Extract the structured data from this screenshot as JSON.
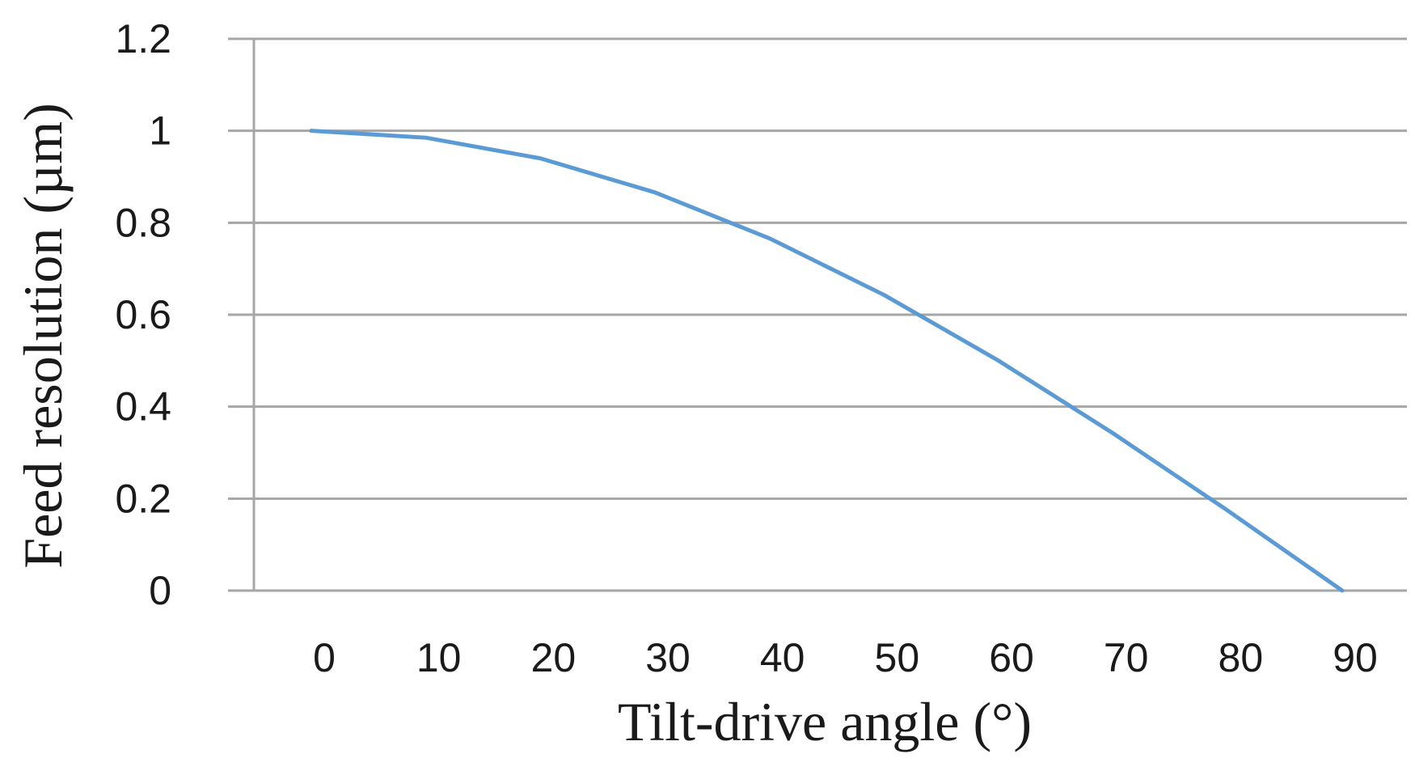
{
  "chart_data": {
    "type": "line",
    "xlabel": "Tilt-drive angle (°)",
    "ylabel": "Feed resolution (µm)",
    "x_tick_labels": [
      "0",
      "10",
      "20",
      "30",
      "40",
      "50",
      "60",
      "70",
      "80",
      "90"
    ],
    "y_tick_labels": [
      "0",
      "0.2",
      "0.4",
      "0.6",
      "0.8",
      "1",
      "1.2"
    ],
    "ylim": [
      0,
      1.2
    ],
    "grid": true,
    "legend": "none",
    "series": [
      {
        "x": [
          0,
          10,
          20,
          30,
          40,
          50,
          60,
          70,
          80,
          90
        ],
        "values": [
          1.0,
          0.985,
          0.94,
          0.866,
          0.766,
          0.643,
          0.5,
          0.342,
          0.174,
          0.0
        ],
        "color": "#5b9bd5"
      }
    ]
  }
}
